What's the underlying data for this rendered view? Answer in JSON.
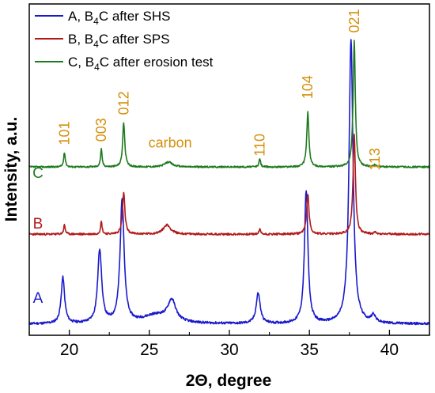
{
  "chart_data": {
    "type": "line",
    "xlabel": "2Θ, degree",
    "ylabel": "Intensity, a.u.",
    "xlim": [
      17.5,
      42.5
    ],
    "ylim": [
      0,
      100
    ],
    "xticks": [
      "20",
      "25",
      "30",
      "35",
      "40"
    ],
    "grid": false,
    "legend_position": "top-left",
    "legend": [
      {
        "prefix": "A, B",
        "sub": "4",
        "suffix": "C after SHS"
      },
      {
        "prefix": "B, B",
        "sub": "4",
        "suffix": "C after SPS"
      },
      {
        "prefix": "C, B",
        "sub": "4",
        "suffix": "C after erosion test"
      }
    ],
    "curve_labels": [
      "A",
      "B",
      "C"
    ],
    "peak_labels": [
      {
        "text": "101",
        "x": 19.7,
        "y": 57.4
      },
      {
        "text": "003",
        "x": 22.0,
        "y": 58.4
      },
      {
        "text": "012",
        "x": 23.4,
        "y": 66.5
      },
      {
        "text": "carbon",
        "x": 26.3,
        "y": 56.7
      },
      {
        "text": "110",
        "x": 31.9,
        "y": 54.0
      },
      {
        "text": "104",
        "x": 34.9,
        "y": 71.3
      },
      {
        "text": "021",
        "x": 37.8,
        "y": 91.3
      },
      {
        "text": "113",
        "x": 39.1,
        "y": 49.7
      }
    ],
    "series": [
      {
        "name": "A, B4C after SHS",
        "color": "#1a1acc",
        "baseline": 3.4,
        "noise": 0.35,
        "peaks": [
          {
            "x": 19.6,
            "h": 13.9,
            "w": 0.13
          },
          {
            "x": 21.9,
            "h": 22.1,
            "w": 0.15
          },
          {
            "x": 23.3,
            "h": 37.4,
            "w": 0.15
          },
          {
            "x": 26.4,
            "h": 6.3,
            "w": 0.3
          },
          {
            "x": 25.4,
            "h": 2.5,
            "w": 1.0
          },
          {
            "x": 31.8,
            "h": 9.2,
            "w": 0.15
          },
          {
            "x": 34.8,
            "h": 40.0,
            "w": 0.13
          },
          {
            "x": 37.6,
            "h": 86.0,
            "w": 0.15
          },
          {
            "x": 39.0,
            "h": 2.3,
            "w": 0.15
          }
        ]
      },
      {
        "name": "B, B4C after SPS",
        "color": "#b21a1a",
        "baseline": 30.5,
        "noise": 0.3,
        "peaks": [
          {
            "x": 19.7,
            "h": 2.8,
            "w": 0.06
          },
          {
            "x": 22.0,
            "h": 3.8,
            "w": 0.06
          },
          {
            "x": 23.4,
            "h": 12.5,
            "w": 0.09
          },
          {
            "x": 26.1,
            "h": 2.8,
            "w": 0.28
          },
          {
            "x": 31.9,
            "h": 1.5,
            "w": 0.06
          },
          {
            "x": 34.9,
            "h": 12.2,
            "w": 0.09
          },
          {
            "x": 37.8,
            "h": 30.0,
            "w": 0.09
          },
          {
            "x": 39.1,
            "h": 0.6,
            "w": 0.06
          }
        ]
      },
      {
        "name": "C, B4C after erosion test",
        "color": "#1f7a1f",
        "baseline": 50.8,
        "noise": 0.25,
        "peaks": [
          {
            "x": 19.7,
            "h": 4.4,
            "w": 0.06
          },
          {
            "x": 22.0,
            "h": 5.3,
            "w": 0.06
          },
          {
            "x": 23.4,
            "h": 13.4,
            "w": 0.08
          },
          {
            "x": 26.2,
            "h": 1.5,
            "w": 0.28
          },
          {
            "x": 31.9,
            "h": 2.4,
            "w": 0.06
          },
          {
            "x": 34.9,
            "h": 16.5,
            "w": 0.08
          },
          {
            "x": 37.8,
            "h": 38.2,
            "w": 0.08
          },
          {
            "x": 39.1,
            "h": 0.6,
            "w": 0.06
          }
        ]
      }
    ]
  }
}
